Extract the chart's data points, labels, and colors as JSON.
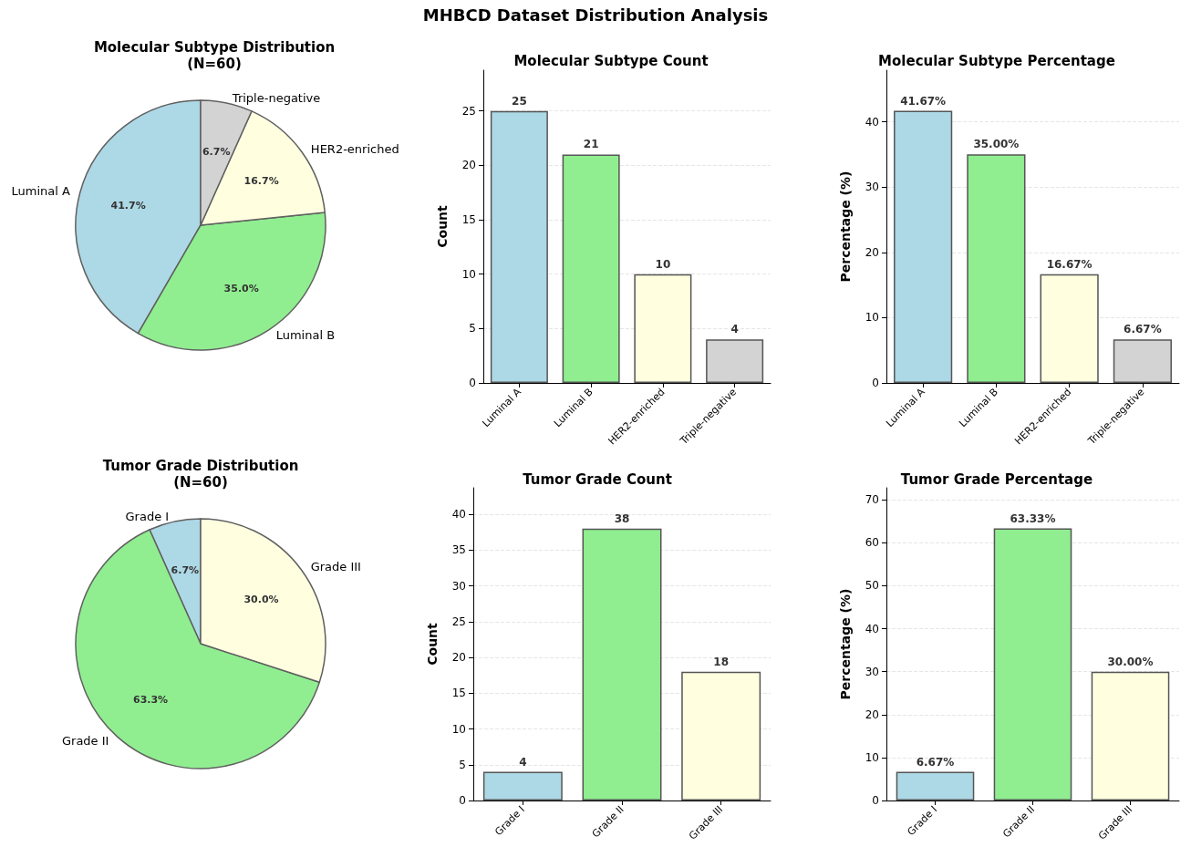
{
  "chart_data": [
    {
      "type": "pie",
      "title": "Molecular Subtype Distribution\n(N=60)",
      "annotations": [
        "MHBCD Dataset Distribution Analysis"
      ],
      "categories": [
        "Luminal A",
        "Luminal B",
        "HER2-enriched",
        "Triple-negative"
      ],
      "values": [
        41.7,
        35.0,
        16.7,
        6.7
      ],
      "value_labels": [
        "41.7%",
        "35.0%",
        "16.7%",
        "6.7%"
      ],
      "colors": [
        "#add8e6",
        "#90ee90",
        "#ffffe0",
        "#d3d3d3"
      ]
    },
    {
      "type": "bar",
      "title": "Molecular Subtype Count",
      "ylabel": "Count",
      "categories": [
        "Luminal A",
        "Luminal B",
        "HER2-enriched",
        "Triple-negative"
      ],
      "values": [
        25,
        21,
        10,
        4
      ],
      "colors": [
        "#add8e6",
        "#90ee90",
        "#ffffe0",
        "#d3d3d3"
      ],
      "ylim": [
        0,
        28.75
      ],
      "yticks": [
        0,
        5,
        10,
        15,
        20,
        25
      ],
      "grid": "y",
      "data_labels": true
    },
    {
      "type": "bar",
      "title": "Molecular Subtype Percentage",
      "ylabel": "Percentage (%)",
      "categories": [
        "Luminal A",
        "Luminal B",
        "HER2-enriched",
        "Triple-negative"
      ],
      "values": [
        41.67,
        35.0,
        16.67,
        6.67
      ],
      "value_labels": [
        "41.67%",
        "35.00%",
        "16.67%",
        "6.67%"
      ],
      "colors": [
        "#add8e6",
        "#90ee90",
        "#ffffe0",
        "#d3d3d3"
      ],
      "ylim": [
        0,
        47.9
      ],
      "yticks": [
        0,
        10,
        20,
        30,
        40
      ],
      "grid": "y"
    },
    {
      "type": "pie",
      "title": "Tumor Grade Distribution\n(N=60)",
      "categories": [
        "Grade I",
        "Grade II",
        "Grade III"
      ],
      "values": [
        6.7,
        63.3,
        30.0
      ],
      "value_labels": [
        "6.7%",
        "63.3%",
        "30.0%"
      ],
      "colors": [
        "#add8e6",
        "#90ee90",
        "#ffffe0"
      ]
    },
    {
      "type": "bar",
      "title": "Tumor Grade Count",
      "ylabel": "Count",
      "categories": [
        "Grade I",
        "Grade II",
        "Grade III"
      ],
      "values": [
        4,
        38,
        18
      ],
      "colors": [
        "#add8e6",
        "#90ee90",
        "#ffffe0"
      ],
      "ylim": [
        0,
        43.7
      ],
      "yticks": [
        0,
        5,
        10,
        15,
        20,
        25,
        30,
        35,
        40
      ],
      "grid": "y",
      "data_labels": true
    },
    {
      "type": "bar",
      "title": "Tumor Grade Percentage",
      "ylabel": "Percentage (%)",
      "categories": [
        "Grade I",
        "Grade II",
        "Grade III"
      ],
      "values": [
        6.67,
        63.33,
        30.0
      ],
      "value_labels": [
        "6.67%",
        "63.33%",
        "30.00%"
      ],
      "colors": [
        "#add8e6",
        "#90ee90",
        "#ffffe0"
      ],
      "ylim": [
        0,
        72.8
      ],
      "yticks": [
        0,
        10,
        20,
        30,
        40,
        50,
        60,
        70
      ],
      "grid": "y"
    }
  ]
}
